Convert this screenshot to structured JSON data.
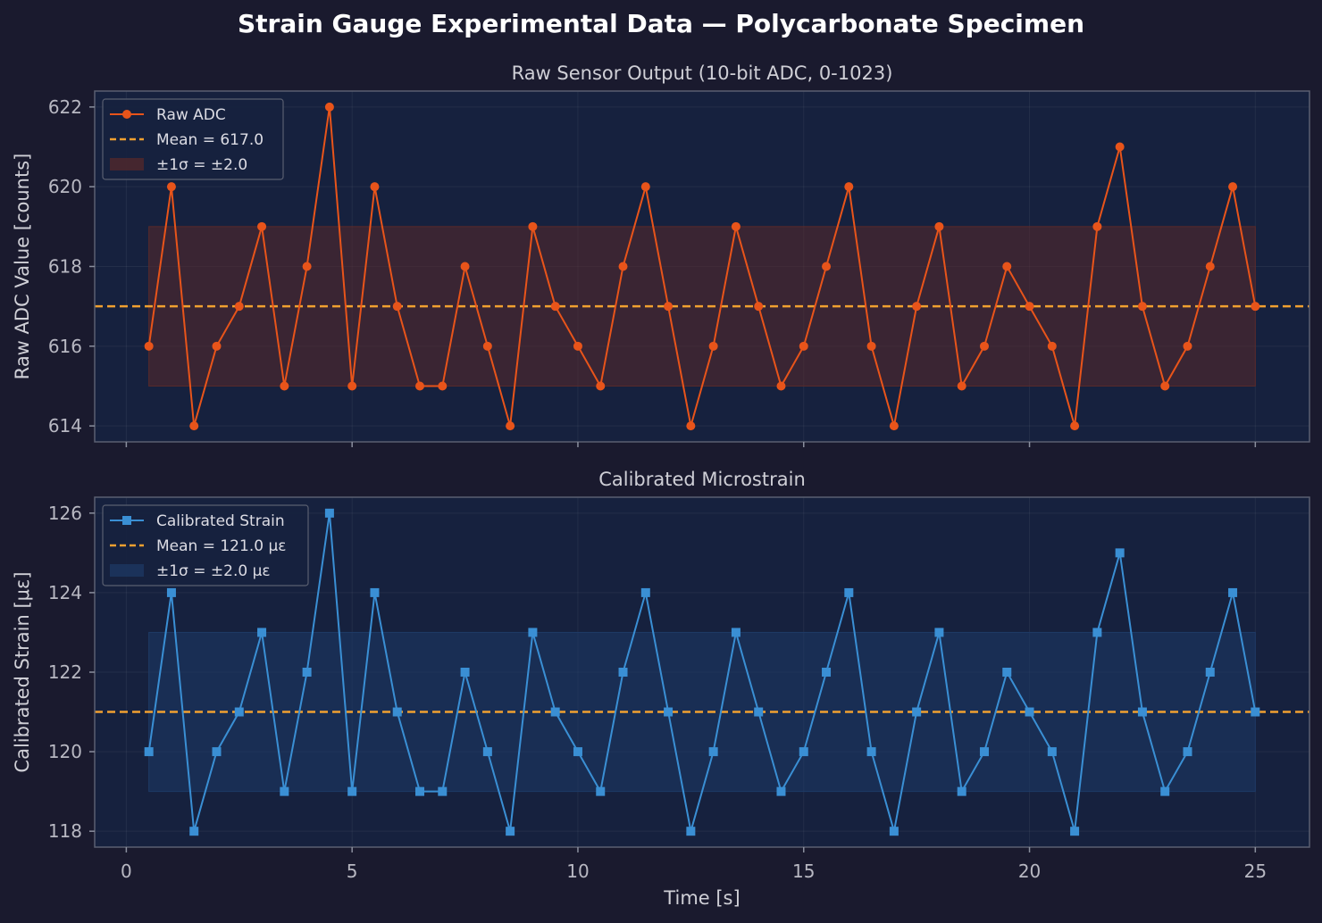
{
  "figure": {
    "title": "Strain Gauge Experimental Data — Polycarbonate Specimen",
    "background": "#1a1a2e",
    "panel_background": "#16213e",
    "text_color": "#cfcfd6"
  },
  "chart_data": [
    {
      "type": "line",
      "title": "Raw Sensor Output (10-bit ADC, 0-1023)",
      "xlabel": "",
      "ylabel": "Raw ADC Value [counts]",
      "xlim": [
        -0.7,
        26.2
      ],
      "ylim": [
        613.6,
        622.4
      ],
      "xticks": [
        0,
        5,
        10,
        15,
        20,
        25
      ],
      "yticks": [
        614,
        616,
        618,
        620,
        622
      ],
      "show_xticklabels": false,
      "grid": true,
      "legend_position": "upper-left",
      "x": [
        0.5,
        1.0,
        1.5,
        2.0,
        2.5,
        3.0,
        3.5,
        4.0,
        4.5,
        5.0,
        5.5,
        6.0,
        6.5,
        7.0,
        7.5,
        8.0,
        8.5,
        9.0,
        9.5,
        10.0,
        10.5,
        11.0,
        11.5,
        12.0,
        12.5,
        13.0,
        13.5,
        14.0,
        14.5,
        15.0,
        15.5,
        16.0,
        16.5,
        17.0,
        17.5,
        18.0,
        18.5,
        19.0,
        19.5,
        20.0,
        20.5,
        21.0,
        21.5,
        22.0,
        22.5,
        23.0,
        23.5,
        24.0,
        24.5,
        25.0
      ],
      "series": [
        {
          "name": "Raw ADC",
          "marker": "circle",
          "color": "#e8541a",
          "values": [
            616,
            620,
            614,
            616,
            617,
            619,
            615,
            618,
            622,
            615,
            620,
            617,
            615,
            615,
            618,
            616,
            614,
            619,
            617,
            616,
            615,
            618,
            620,
            617,
            614,
            616,
            619,
            617,
            615,
            616,
            618,
            620,
            616,
            614,
            617,
            619,
            615,
            616,
            618,
            617,
            616,
            614,
            619,
            621,
            617,
            615,
            616,
            618,
            620,
            617
          ]
        }
      ],
      "mean": {
        "label": "Mean = 617.0",
        "value": 617.0,
        "color": "#f0a030"
      },
      "band": {
        "label": "±1σ = ±2.0",
        "low": 615.0,
        "high": 619.0,
        "x_start": 0.5,
        "x_end": 25.0,
        "color": "#5a2a2a"
      }
    },
    {
      "type": "line",
      "title": "Calibrated Microstrain",
      "xlabel": "Time [s]",
      "ylabel": "Calibrated Strain [με]",
      "xlim": [
        -0.7,
        26.2
      ],
      "ylim": [
        117.6,
        126.4
      ],
      "xticks": [
        0,
        5,
        10,
        15,
        20,
        25
      ],
      "yticks": [
        118,
        120,
        122,
        124,
        126
      ],
      "show_xticklabels": true,
      "grid": true,
      "legend_position": "upper-left",
      "x": [
        0.5,
        1.0,
        1.5,
        2.0,
        2.5,
        3.0,
        3.5,
        4.0,
        4.5,
        5.0,
        5.5,
        6.0,
        6.5,
        7.0,
        7.5,
        8.0,
        8.5,
        9.0,
        9.5,
        10.0,
        10.5,
        11.0,
        11.5,
        12.0,
        12.5,
        13.0,
        13.5,
        14.0,
        14.5,
        15.0,
        15.5,
        16.0,
        16.5,
        17.0,
        17.5,
        18.0,
        18.5,
        19.0,
        19.5,
        20.0,
        20.5,
        21.0,
        21.5,
        22.0,
        22.5,
        23.0,
        23.5,
        24.0,
        24.5,
        25.0
      ],
      "series": [
        {
          "name": "Calibrated Strain",
          "marker": "square",
          "color": "#3a8fd4",
          "values": [
            120,
            124,
            118,
            120,
            121,
            123,
            119,
            122,
            126,
            119,
            124,
            121,
            119,
            119,
            122,
            120,
            118,
            123,
            121,
            120,
            119,
            122,
            124,
            121,
            118,
            120,
            123,
            121,
            119,
            120,
            122,
            124,
            120,
            118,
            121,
            123,
            119,
            120,
            122,
            121,
            120,
            118,
            123,
            125,
            121,
            119,
            120,
            122,
            124,
            121
          ]
        }
      ],
      "mean": {
        "label": "Mean = 121.0 με",
        "value": 121.0,
        "color": "#f0a030"
      },
      "band": {
        "label": "±1σ = ±2.0 με",
        "low": 119.0,
        "high": 123.0,
        "x_start": 0.5,
        "x_end": 25.0,
        "color": "#1e3a66"
      }
    }
  ]
}
